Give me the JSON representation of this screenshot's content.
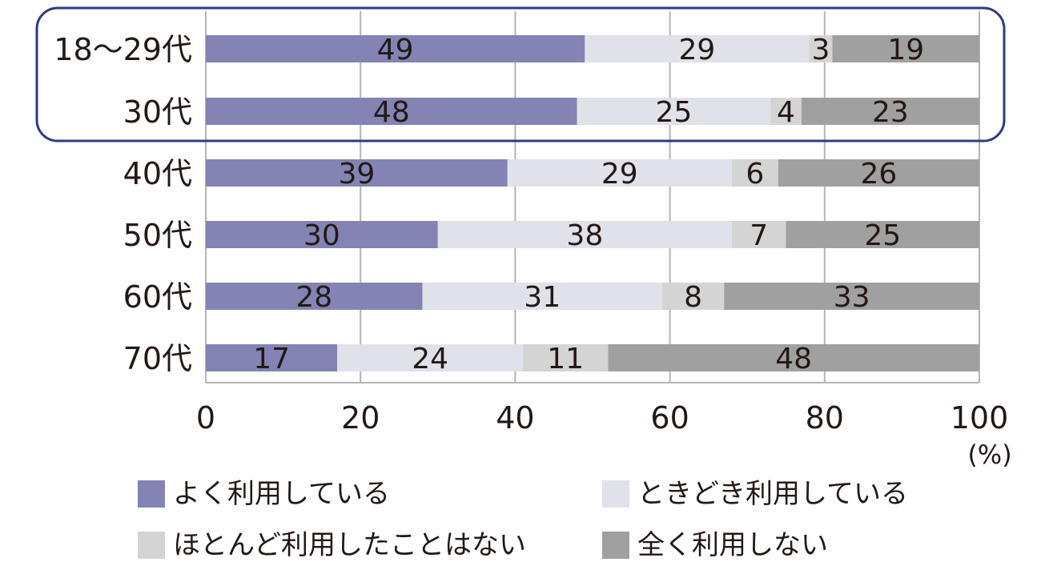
{
  "chart_data": {
    "type": "bar",
    "stacked": true,
    "orientation": "horizontal",
    "categories": [
      "18〜29代",
      "30代",
      "40代",
      "50代",
      "60代",
      "70代"
    ],
    "series": [
      {
        "name": "よく利用している",
        "color": "#8384b3",
        "values": [
          49,
          48,
          39,
          30,
          28,
          17
        ]
      },
      {
        "name": "ときどき利用している",
        "color": "#e1e1ea",
        "values": [
          29,
          25,
          29,
          38,
          31,
          24
        ]
      },
      {
        "name": "ほとんど利用したことはない",
        "color": "#d4d4d4",
        "values": [
          3,
          4,
          6,
          7,
          8,
          11
        ]
      },
      {
        "name": "全く利用しない",
        "color": "#a0a0a0",
        "values": [
          19,
          23,
          26,
          25,
          33,
          48
        ]
      }
    ],
    "x_ticks": [
      "0",
      "20",
      "40",
      "60",
      "80",
      "100"
    ],
    "x_unit": "(%)",
    "xlim": [
      0,
      100
    ],
    "grid": true,
    "highlight_box_color": "#2e3a87",
    "highlighted_categories": [
      "18〜29代",
      "30代"
    ],
    "legend_position": "bottom"
  }
}
